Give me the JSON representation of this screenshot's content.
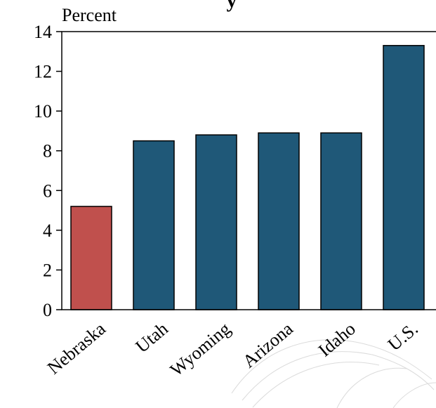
{
  "chart_data": {
    "type": "bar",
    "title": "y",
    "ylabel": "Percent",
    "xlabel": "",
    "categories": [
      "Nebraska",
      "Utah",
      "Wyoming",
      "Arizona",
      "Idaho",
      "U.S."
    ],
    "values": [
      5.2,
      8.5,
      8.8,
      8.9,
      8.9,
      13.3
    ],
    "ylim": [
      0,
      14
    ],
    "yticks": [
      0,
      2,
      4,
      6,
      8,
      10,
      12,
      14
    ],
    "highlight_index": 0,
    "colors": {
      "highlight": "#C0504D",
      "bar": "#1F5878",
      "edge": "#000000"
    },
    "grid": false,
    "legend": "none"
  }
}
